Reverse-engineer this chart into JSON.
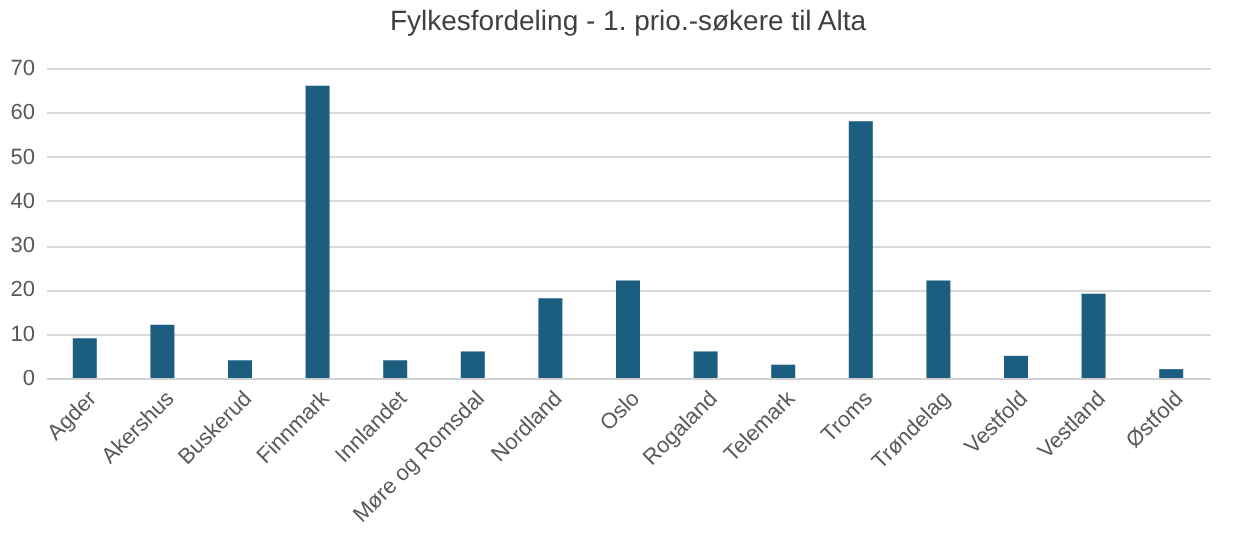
{
  "chart_data": {
    "type": "bar",
    "title": "Fylkesfordeling - 1. prio.-søkere til Alta",
    "categories": [
      "Agder",
      "Akershus",
      "Buskerud",
      "Finnmark",
      "Innlandet",
      "Møre og Romsdal",
      "Nordland",
      "Oslo",
      "Rogaland",
      "Telemark",
      "Troms",
      "Trøndelag",
      "Vestfold",
      "Vestland",
      "Østfold"
    ],
    "values": [
      9,
      12,
      4,
      66,
      4,
      6,
      18,
      22,
      6,
      3,
      58,
      22,
      5,
      19,
      2
    ],
    "color": "#1b5e7f",
    "ylim": [
      0,
      70
    ],
    "yticks": [
      0,
      10,
      20,
      30,
      40,
      50,
      60,
      70
    ],
    "grid": "y"
  }
}
